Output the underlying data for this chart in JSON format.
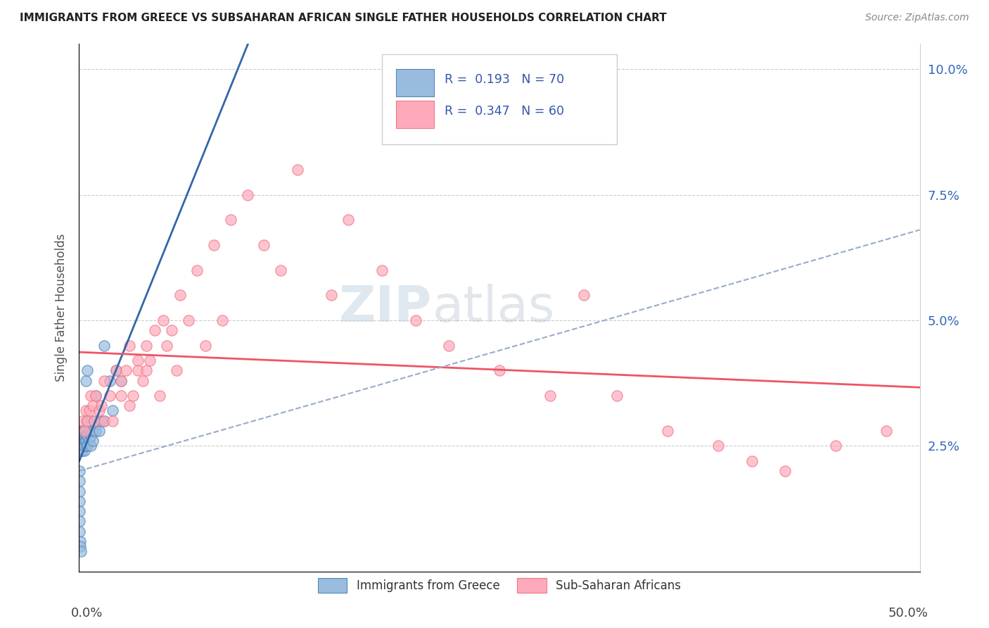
{
  "title": "IMMIGRANTS FROM GREECE VS SUBSAHARAN AFRICAN SINGLE FATHER HOUSEHOLDS CORRELATION CHART",
  "source": "Source: ZipAtlas.com",
  "ylabel": "Single Father Households",
  "blue_color": "#99BBDD",
  "blue_edge": "#5588BB",
  "pink_color": "#FFAABB",
  "pink_edge": "#EE7788",
  "trend_blue_color": "#3366AA",
  "trend_pink_color": "#EE5566",
  "trend_dashed_color": "#99AACC",
  "ytick_color": "#3366BB",
  "legend_text_color": "#3355AA",
  "watermark_color": "#CCDDEE",
  "title_color": "#222222",
  "source_color": "#888888",
  "blue_x": [
    0.0002,
    0.0003,
    0.0005,
    0.0005,
    0.0006,
    0.0007,
    0.0008,
    0.0009,
    0.001,
    0.001,
    0.001,
    0.0012,
    0.0013,
    0.0014,
    0.0015,
    0.0015,
    0.0016,
    0.0017,
    0.0018,
    0.002,
    0.002,
    0.002,
    0.002,
    0.0022,
    0.0023,
    0.0025,
    0.0025,
    0.0027,
    0.003,
    0.003,
    0.003,
    0.003,
    0.0032,
    0.0035,
    0.0035,
    0.004,
    0.004,
    0.004,
    0.0042,
    0.0045,
    0.005,
    0.005,
    0.005,
    0.006,
    0.006,
    0.007,
    0.007,
    0.008,
    0.008,
    0.009,
    0.01,
    0.01,
    0.012,
    0.013,
    0.015,
    0.015,
    0.018,
    0.02,
    0.022,
    0.025,
    0.0001,
    0.0001,
    0.0002,
    0.0002,
    0.0003,
    0.0004,
    0.0004,
    0.0006,
    0.0008,
    0.001
  ],
  "blue_y": [
    0.025,
    0.027,
    0.026,
    0.024,
    0.028,
    0.025,
    0.026,
    0.027,
    0.025,
    0.026,
    0.024,
    0.027,
    0.025,
    0.026,
    0.028,
    0.024,
    0.025,
    0.027,
    0.026,
    0.025,
    0.027,
    0.026,
    0.024,
    0.028,
    0.025,
    0.027,
    0.026,
    0.025,
    0.028,
    0.026,
    0.024,
    0.027,
    0.025,
    0.026,
    0.028,
    0.027,
    0.026,
    0.038,
    0.025,
    0.03,
    0.027,
    0.025,
    0.04,
    0.028,
    0.026,
    0.025,
    0.027,
    0.028,
    0.026,
    0.03,
    0.028,
    0.035,
    0.028,
    0.03,
    0.03,
    0.045,
    0.038,
    0.032,
    0.04,
    0.038,
    0.02,
    0.018,
    0.016,
    0.014,
    0.012,
    0.01,
    0.008,
    0.006,
    0.005,
    0.004
  ],
  "pink_x": [
    0.002,
    0.003,
    0.004,
    0.005,
    0.006,
    0.007,
    0.008,
    0.009,
    0.01,
    0.012,
    0.013,
    0.015,
    0.015,
    0.018,
    0.02,
    0.022,
    0.025,
    0.025,
    0.028,
    0.03,
    0.03,
    0.032,
    0.035,
    0.035,
    0.038,
    0.04,
    0.04,
    0.042,
    0.045,
    0.048,
    0.05,
    0.052,
    0.055,
    0.058,
    0.06,
    0.065,
    0.07,
    0.075,
    0.08,
    0.085,
    0.09,
    0.1,
    0.11,
    0.12,
    0.13,
    0.15,
    0.16,
    0.18,
    0.2,
    0.22,
    0.25,
    0.28,
    0.3,
    0.32,
    0.35,
    0.38,
    0.4,
    0.42,
    0.45,
    0.48
  ],
  "pink_y": [
    0.03,
    0.028,
    0.032,
    0.03,
    0.032,
    0.035,
    0.033,
    0.03,
    0.035,
    0.032,
    0.033,
    0.03,
    0.038,
    0.035,
    0.03,
    0.04,
    0.035,
    0.038,
    0.04,
    0.033,
    0.045,
    0.035,
    0.042,
    0.04,
    0.038,
    0.045,
    0.04,
    0.042,
    0.048,
    0.035,
    0.05,
    0.045,
    0.048,
    0.04,
    0.055,
    0.05,
    0.06,
    0.045,
    0.065,
    0.05,
    0.07,
    0.075,
    0.065,
    0.06,
    0.08,
    0.055,
    0.07,
    0.06,
    0.05,
    0.045,
    0.04,
    0.035,
    0.055,
    0.035,
    0.028,
    0.025,
    0.022,
    0.02,
    0.025,
    0.028
  ],
  "xlim": [
    0.0,
    0.5
  ],
  "ylim": [
    0.0,
    0.105
  ],
  "yticks": [
    0.025,
    0.05,
    0.075,
    0.1
  ],
  "ytick_labels": [
    "2.5%",
    "5.0%",
    "7.5%",
    "10.0%"
  ]
}
